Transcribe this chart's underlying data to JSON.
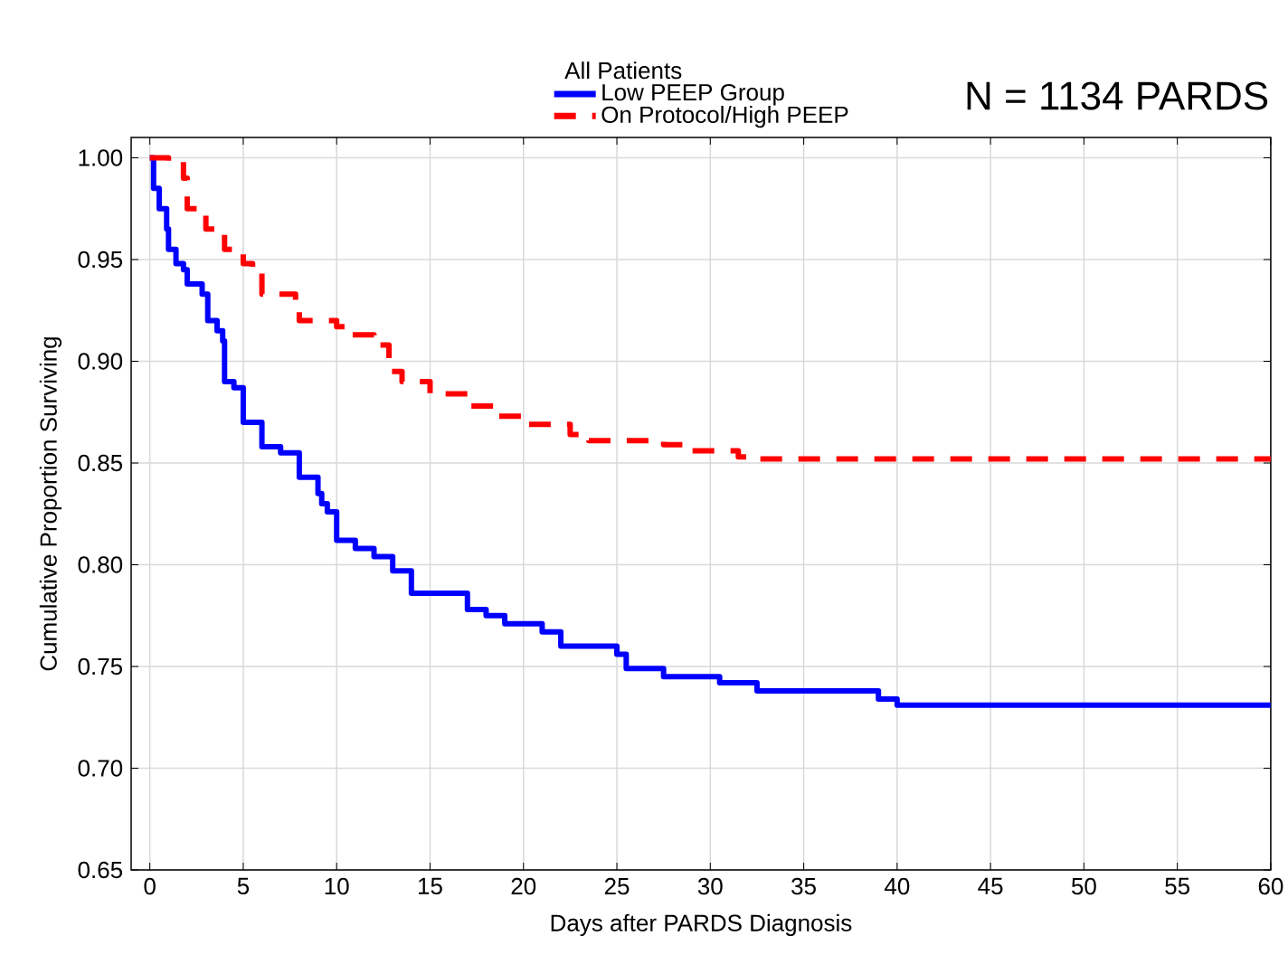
{
  "chart_data": {
    "type": "step",
    "xlabel": "Days after PARDS Diagnosis",
    "ylabel": "Cumulative Proportion Surviving",
    "legend_title": "All Patients",
    "annotations": [
      "N = 1134 PARDS"
    ],
    "xlim": [
      -1,
      60
    ],
    "ylim": [
      0.65,
      1.01
    ],
    "xticks": [
      0,
      5,
      10,
      15,
      20,
      25,
      30,
      35,
      40,
      45,
      50,
      55,
      60
    ],
    "yticks": [
      {
        "value": 0.65,
        "label": "0.65"
      },
      {
        "value": 0.7,
        "label": "0.70"
      },
      {
        "value": 0.75,
        "label": "0.75"
      },
      {
        "value": 0.8,
        "label": "0.80"
      },
      {
        "value": 0.85,
        "label": "0.85"
      },
      {
        "value": 0.9,
        "label": "0.90"
      },
      {
        "value": 0.95,
        "label": "0.95"
      },
      {
        "value": 1.0,
        "label": "1.00"
      }
    ],
    "grid": true,
    "legend": "top",
    "series": [
      {
        "name": "Low PEEP Group",
        "color": "#0000ff",
        "line_style": "solid",
        "x": [
          0,
          0.2,
          0.5,
          0.9,
          1.0,
          1.4,
          1.8,
          2.0,
          2.8,
          3.1,
          3.6,
          3.9,
          4.0,
          4.5,
          5.0,
          6.0,
          7.0,
          8.0,
          9.0,
          9.2,
          9.5,
          10.0,
          11.0,
          12.0,
          13.0,
          14.0,
          17.0,
          18.0,
          19.0,
          21.0,
          22.0,
          25.0,
          25.5,
          27.5,
          30.5,
          32.5,
          39.0,
          40.0,
          60.0
        ],
        "values": [
          1.0,
          0.985,
          0.975,
          0.965,
          0.955,
          0.948,
          0.945,
          0.938,
          0.933,
          0.92,
          0.915,
          0.91,
          0.89,
          0.887,
          0.87,
          0.858,
          0.855,
          0.843,
          0.835,
          0.83,
          0.826,
          0.812,
          0.808,
          0.804,
          0.797,
          0.786,
          0.778,
          0.775,
          0.771,
          0.767,
          0.76,
          0.756,
          0.749,
          0.745,
          0.742,
          0.738,
          0.734,
          0.731,
          0.731
        ]
      },
      {
        "name": "On Protocol/High PEEP",
        "color": "#ff0000",
        "line_style": "dashed",
        "x": [
          0,
          1.0,
          1.8,
          2.0,
          3.0,
          4.0,
          5.0,
          5.5,
          6.0,
          7.8,
          8.0,
          10.0,
          10.5,
          12.0,
          12.8,
          13.5,
          15.0,
          17.0,
          18.5,
          20.0,
          22.5,
          23.5,
          27.5,
          29.0,
          31.5,
          32.5,
          60.0
        ],
        "values": [
          1.0,
          0.998,
          0.99,
          0.975,
          0.965,
          0.955,
          0.948,
          0.945,
          0.933,
          0.93,
          0.92,
          0.917,
          0.913,
          0.908,
          0.895,
          0.89,
          0.884,
          0.878,
          0.873,
          0.869,
          0.864,
          0.861,
          0.859,
          0.856,
          0.853,
          0.852,
          0.852
        ]
      }
    ]
  }
}
